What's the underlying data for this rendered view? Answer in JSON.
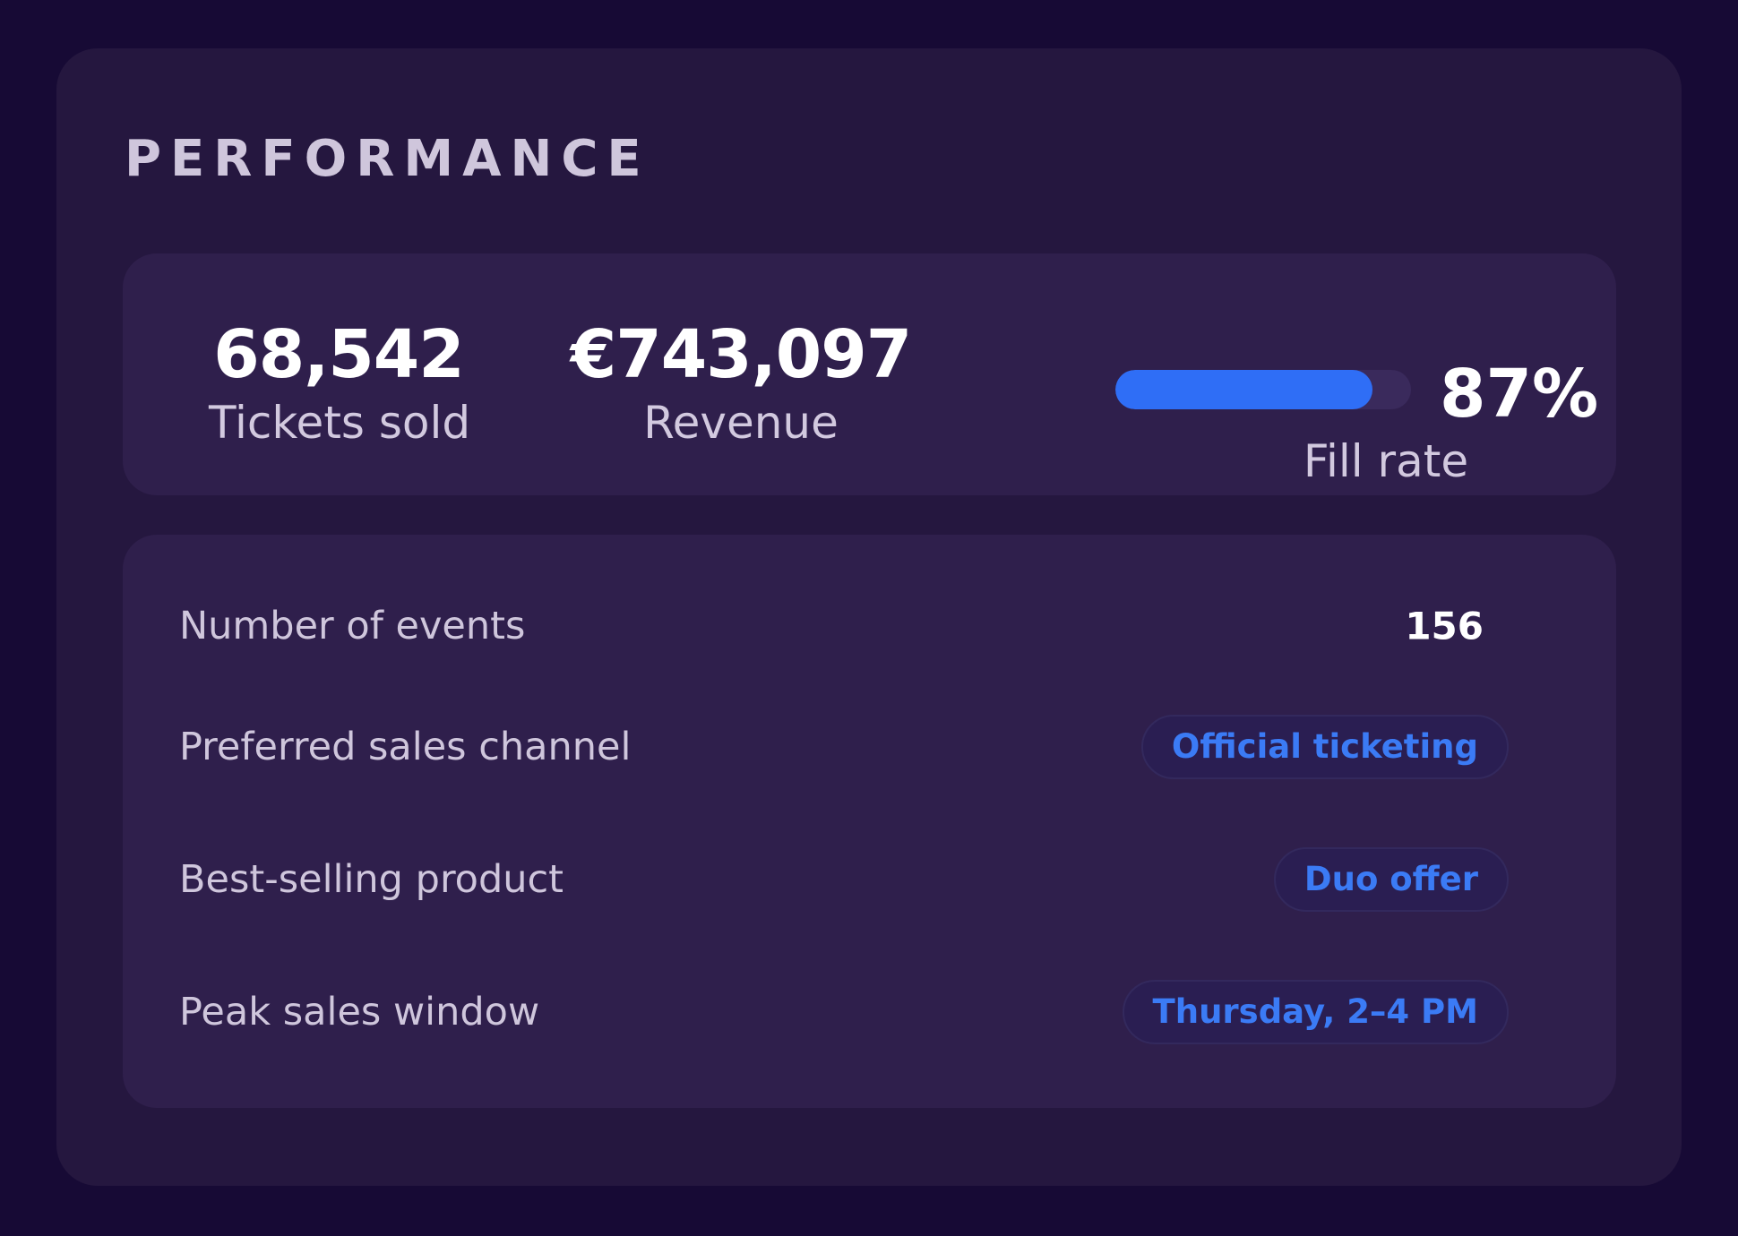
{
  "performance": {
    "title": "PERFORMANCE",
    "kpis": {
      "tickets": {
        "value": "68,542",
        "label": "Tickets sold"
      },
      "revenue": {
        "value": "€743,097",
        "label": "Revenue"
      },
      "fill_rate": {
        "value": "87%",
        "label": "Fill rate",
        "percent": 87
      }
    },
    "details": [
      {
        "label": "Number of events",
        "value": "156",
        "style": "plain"
      },
      {
        "label": "Preferred sales channel",
        "value": "Official ticketing",
        "style": "pill"
      },
      {
        "label": "Best-selling product",
        "value": "Duo offer",
        "style": "pill"
      },
      {
        "label": "Peak sales window",
        "value": "Thursday, 2–4 PM",
        "style": "pill"
      }
    ]
  },
  "colors": {
    "background": "#170a35",
    "card": "#25173f",
    "panel": "#2f1f4c",
    "accent": "#2f6ef6",
    "pill_text": "#3b7bf5"
  }
}
